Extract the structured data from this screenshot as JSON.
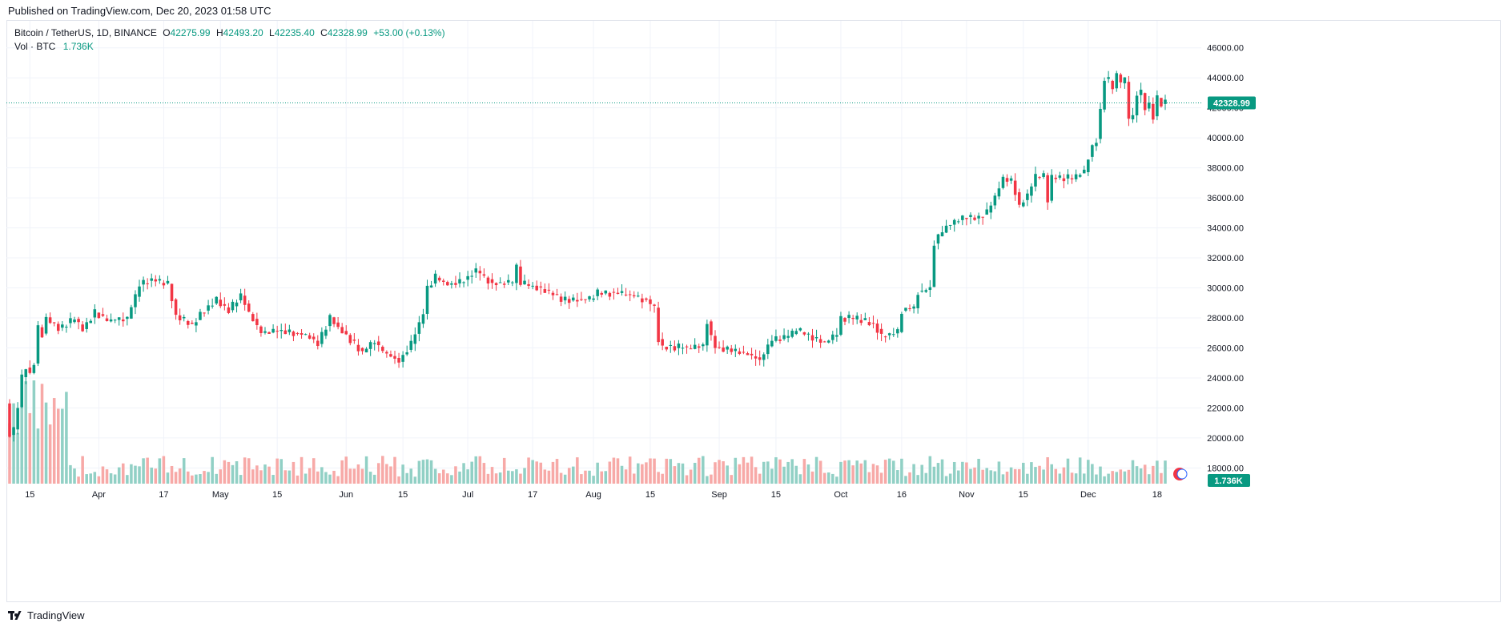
{
  "header": {
    "published": "Published on TradingView.com, Dec 20, 2023 01:58 UTC"
  },
  "legend": {
    "symbol": "Bitcoin / TetherUS, 1D, BINANCE",
    "open_label": "O",
    "open": "42275.99",
    "high_label": "H",
    "high": "42493.20",
    "low_label": "L",
    "low": "42235.40",
    "close_label": "C",
    "close": "42328.99",
    "change": "+53.00 (+0.13%)",
    "vol_label": "Vol · BTC",
    "vol": "1.736K"
  },
  "footer": {
    "brand": "TradingView"
  },
  "colors": {
    "up": "#089981",
    "down": "#f23645",
    "vol_up": "#91d0c5",
    "vol_down": "#f7a9a7",
    "grid": "#f0f3fa",
    "price_line": "#089981"
  },
  "chart_data": {
    "type": "candlestick",
    "symbol": "BTCUSDT",
    "timeframe": "1D",
    "exchange": "BINANCE",
    "y_ticks": [
      18000,
      20000,
      22000,
      24000,
      26000,
      28000,
      30000,
      32000,
      34000,
      36000,
      38000,
      40000,
      42000,
      44000,
      46000
    ],
    "y_tick_labels": [
      "18000.00",
      "20000.00",
      "22000.00",
      "24000.00",
      "26000.00",
      "28000.00",
      "30000.00",
      "32000.00",
      "34000.00",
      "36000.00",
      "38000.00",
      "40000.00",
      "42000.00",
      "44000.00",
      "46000.00"
    ],
    "ylim": [
      16900,
      47800
    ],
    "x_tick_labels": [
      "15",
      "Apr",
      "17",
      "May",
      "15",
      "Jun",
      "15",
      "Jul",
      "17",
      "Aug",
      "15",
      "Sep",
      "15",
      "Oct",
      "16",
      "Nov",
      "15",
      "Dec",
      "18"
    ],
    "x_tick_dates": [
      "2023-03-15",
      "2023-04-01",
      "2023-04-17",
      "2023-05-01",
      "2023-05-15",
      "2023-06-01",
      "2023-06-15",
      "2023-07-01",
      "2023-07-17",
      "2023-08-01",
      "2023-08-15",
      "2023-09-01",
      "2023-09-15",
      "2023-10-01",
      "2023-10-16",
      "2023-11-01",
      "2023-11-15",
      "2023-12-01",
      "2023-12-18"
    ],
    "first_date": "2023-03-10",
    "last_price": 42328.99,
    "last_price_label": "42328.99",
    "last_volume_label": "1.736K",
    "close_anchors": [
      [
        "2023-03-10",
        20200
      ],
      [
        "2023-03-11",
        20600
      ],
      [
        "2023-03-12",
        22100
      ],
      [
        "2023-03-13",
        24100
      ],
      [
        "2023-03-14",
        24700
      ],
      [
        "2023-03-15",
        24300
      ],
      [
        "2023-03-16",
        25000
      ],
      [
        "2023-03-17",
        27400
      ],
      [
        "2023-03-18",
        26900
      ],
      [
        "2023-03-19",
        28000
      ],
      [
        "2023-03-22",
        27300
      ],
      [
        "2023-03-26",
        27900
      ],
      [
        "2023-03-28",
        27200
      ],
      [
        "2023-03-31",
        28400
      ],
      [
        "2023-04-03",
        27800
      ],
      [
        "2023-04-08",
        28000
      ],
      [
        "2023-04-11",
        30200
      ],
      [
        "2023-04-14",
        30500
      ],
      [
        "2023-04-18",
        30300
      ],
      [
        "2023-04-20",
        28200
      ],
      [
        "2023-04-24",
        27500
      ],
      [
        "2023-04-26",
        28300
      ],
      [
        "2023-04-30",
        29200
      ],
      [
        "2023-05-03",
        28500
      ],
      [
        "2023-05-06",
        29500
      ],
      [
        "2023-05-08",
        28300
      ],
      [
        "2023-05-11",
        27000
      ],
      [
        "2023-05-15",
        27200
      ],
      [
        "2023-05-22",
        26900
      ],
      [
        "2023-05-25",
        26300
      ],
      [
        "2023-05-28",
        28000
      ],
      [
        "2023-06-01",
        26800
      ],
      [
        "2023-06-05",
        25700
      ],
      [
        "2023-06-08",
        26500
      ],
      [
        "2023-06-10",
        25800
      ],
      [
        "2023-06-14",
        25100
      ],
      [
        "2023-06-17",
        26300
      ],
      [
        "2023-06-20",
        28300
      ],
      [
        "2023-06-21",
        30000
      ],
      [
        "2023-06-23",
        30700
      ],
      [
        "2023-06-26",
        30200
      ],
      [
        "2023-06-30",
        30500
      ],
      [
        "2023-07-03",
        31200
      ],
      [
        "2023-07-07",
        30300
      ],
      [
        "2023-07-12",
        30400
      ],
      [
        "2023-07-13",
        31400
      ],
      [
        "2023-07-14",
        30300
      ],
      [
        "2023-07-20",
        29900
      ],
      [
        "2023-07-24",
        29200
      ],
      [
        "2023-07-31",
        29200
      ],
      [
        "2023-08-02",
        29700
      ],
      [
        "2023-08-09",
        29600
      ],
      [
        "2023-08-14",
        29200
      ],
      [
        "2023-08-16",
        28700
      ],
      [
        "2023-08-17",
        26600
      ],
      [
        "2023-08-18",
        26100
      ],
      [
        "2023-08-25",
        26000
      ],
      [
        "2023-08-28",
        26100
      ],
      [
        "2023-08-29",
        27700
      ],
      [
        "2023-08-31",
        26000
      ],
      [
        "2023-09-06",
        25800
      ],
      [
        "2023-09-11",
        25200
      ],
      [
        "2023-09-14",
        26500
      ],
      [
        "2023-09-18",
        26800
      ],
      [
        "2023-09-20",
        27200
      ],
      [
        "2023-09-27",
        26300
      ],
      [
        "2023-09-30",
        26900
      ],
      [
        "2023-10-01",
        28000
      ],
      [
        "2023-10-06",
        27900
      ],
      [
        "2023-10-09",
        27600
      ],
      [
        "2023-10-11",
        26800
      ],
      [
        "2023-10-15",
        27100
      ],
      [
        "2023-10-16",
        28500
      ],
      [
        "2023-10-19",
        28700
      ],
      [
        "2023-10-20",
        29700
      ],
      [
        "2023-10-23",
        30000
      ],
      [
        "2023-10-24",
        33000
      ],
      [
        "2023-10-27",
        34100
      ],
      [
        "2023-10-31",
        34700
      ],
      [
        "2023-11-03",
        34700
      ],
      [
        "2023-11-06",
        35000
      ],
      [
        "2023-11-09",
        36700
      ],
      [
        "2023-11-10",
        37300
      ],
      [
        "2023-11-12",
        37100
      ],
      [
        "2023-11-14",
        35500
      ],
      [
        "2023-11-16",
        36200
      ],
      [
        "2023-11-18",
        37400
      ],
      [
        "2023-11-20",
        37500
      ],
      [
        "2023-11-21",
        35800
      ],
      [
        "2023-11-22",
        37400
      ],
      [
        "2023-11-27",
        37300
      ],
      [
        "2023-11-30",
        37700
      ],
      [
        "2023-12-01",
        38700
      ],
      [
        "2023-12-02",
        39500
      ],
      [
        "2023-12-03",
        39900
      ],
      [
        "2023-12-04",
        41900
      ],
      [
        "2023-12-05",
        44000
      ],
      [
        "2023-12-06",
        43800
      ],
      [
        "2023-12-07",
        43300
      ],
      [
        "2023-12-08",
        44200
      ],
      [
        "2023-12-09",
        43700
      ],
      [
        "2023-12-10",
        43800
      ],
      [
        "2023-12-11",
        41300
      ],
      [
        "2023-12-12",
        41500
      ],
      [
        "2023-12-13",
        42900
      ],
      [
        "2023-12-14",
        43000
      ],
      [
        "2023-12-15",
        41900
      ],
      [
        "2023-12-16",
        42200
      ],
      [
        "2023-12-17",
        41400
      ],
      [
        "2023-12-18",
        42700
      ],
      [
        "2023-12-19",
        42276
      ],
      [
        "2023-12-20",
        42329
      ]
    ],
    "volume_note_btc": "volume pane at bottom; spike ~45K BTC mid-March, typical 5–15K BTC afterwards"
  }
}
